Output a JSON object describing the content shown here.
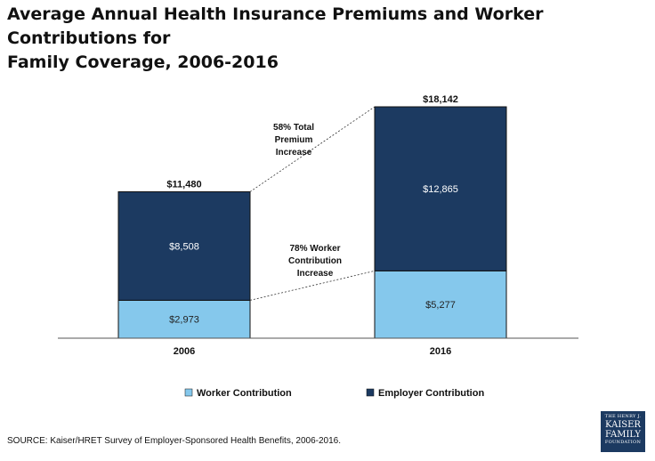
{
  "title_line1": "Average Annual Health Insurance Premiums and Worker Contributions for",
  "title_line2": "Family Coverage, 2006-2016",
  "source": "SOURCE:  Kaiser/HRET Survey of Employer-Sponsored Health Benefits, 2006-2016.",
  "logo": {
    "line1": "THE HENRY J.",
    "line2": "KAISER",
    "line3": "FAMILY",
    "line4": "FOUNDATION"
  },
  "colors": {
    "worker": "#85c8ec",
    "employer": "#1c3a61",
    "text": "#111111"
  },
  "chart_data": {
    "type": "bar",
    "stacked": true,
    "categories": [
      "2006",
      "2016"
    ],
    "series": [
      {
        "name": "Worker Contribution",
        "values": [
          2973,
          5277
        ],
        "labels": [
          "$2,973",
          "$5,277"
        ]
      },
      {
        "name": "Employer Contribution",
        "values": [
          8508,
          12865
        ],
        "labels": [
          "$8,508",
          "$12,865"
        ]
      }
    ],
    "totals": [
      11480,
      18142
    ],
    "total_labels": [
      "$11,480",
      "$18,142"
    ],
    "annotations": [
      {
        "lines": [
          "58% Total",
          "Premium",
          "Increase"
        ],
        "connects": "totals"
      },
      {
        "lines": [
          "78% Worker",
          "Contribution",
          "Increase"
        ],
        "connects": "worker"
      }
    ],
    "ylim": [
      0,
      18142
    ],
    "grid": false,
    "legend_position": "bottom"
  }
}
